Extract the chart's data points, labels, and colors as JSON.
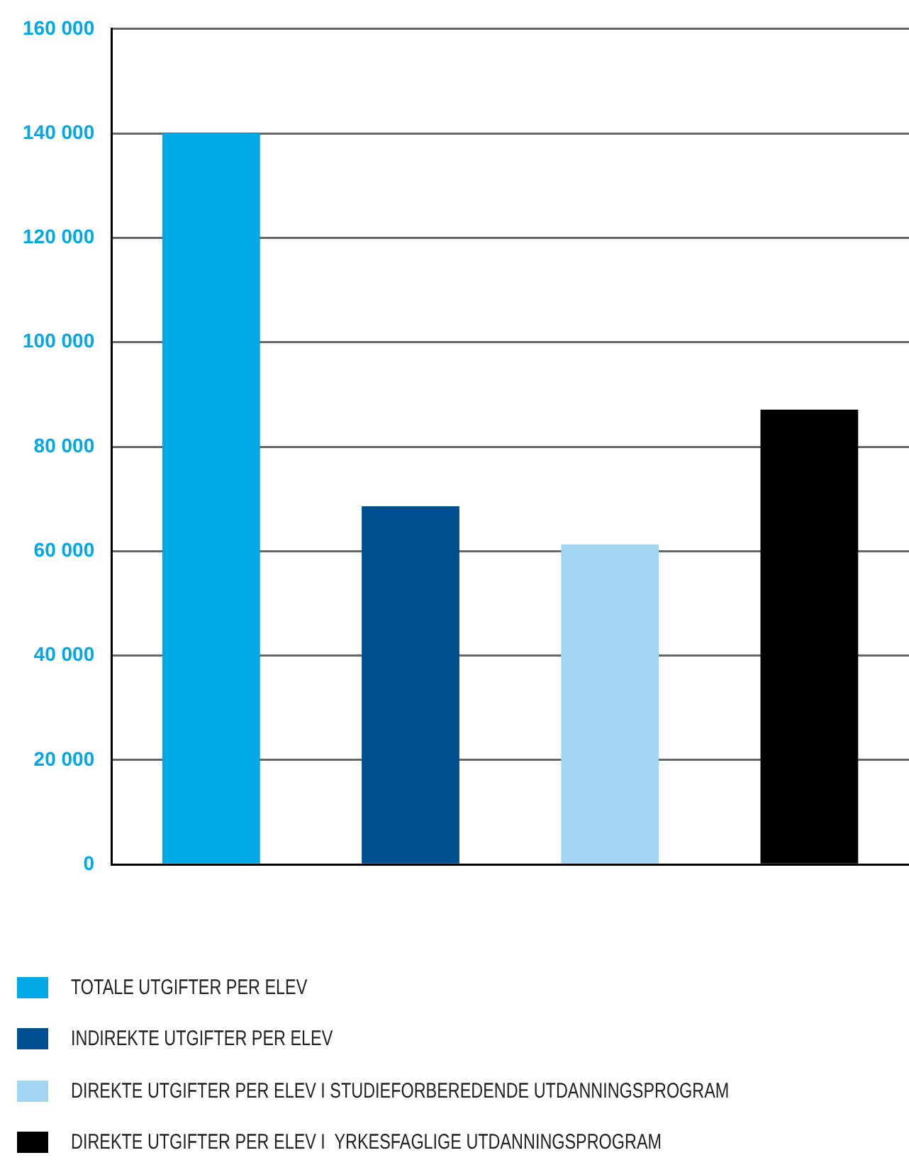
{
  "chart_data": {
    "type": "bar",
    "categories": [
      null,
      null,
      null,
      null
    ],
    "series": [
      {
        "name": "TOTALE UTGIFTER PER ELEV",
        "color": "#00a8e6",
        "values": [
          140000,
          null,
          null,
          null
        ]
      },
      {
        "name": "INDIREKTE UTGIFTER PER ELEV",
        "color": "#004e8f",
        "values": [
          null,
          68600,
          null,
          null
        ]
      },
      {
        "name": "DIREKTE UTGIFTER PER ELEV I STUDIEFORBEREDENDE UTDANNINGSPROGRAM",
        "color": "#a3d6f3",
        "values": [
          null,
          null,
          61300,
          null
        ]
      },
      {
        "name": "DIREKTE UTGIFTER PER ELEV I  YRKESFAGLIGE UTDANNINGSPROGRAM",
        "color": "#000000",
        "values": [
          null,
          null,
          null,
          87100
        ]
      }
    ],
    "ylim": [
      0,
      160000
    ],
    "yticks": [
      0,
      {
        "value": 20000,
        "label": "20 000"
      },
      {
        "value": 40000,
        "label": "40 000"
      },
      {
        "value": 60000,
        "label": "60 000"
      },
      {
        "value": 80000,
        "label": "80 000"
      },
      {
        "value": 100000,
        "label": "100 000"
      },
      {
        "value": 120000,
        "label": "120 000"
      },
      {
        "value": 140000,
        "label": "140 000"
      },
      {
        "value": 160000,
        "label": "160 000"
      }
    ],
    "grid": "y",
    "legend": "bottom"
  }
}
